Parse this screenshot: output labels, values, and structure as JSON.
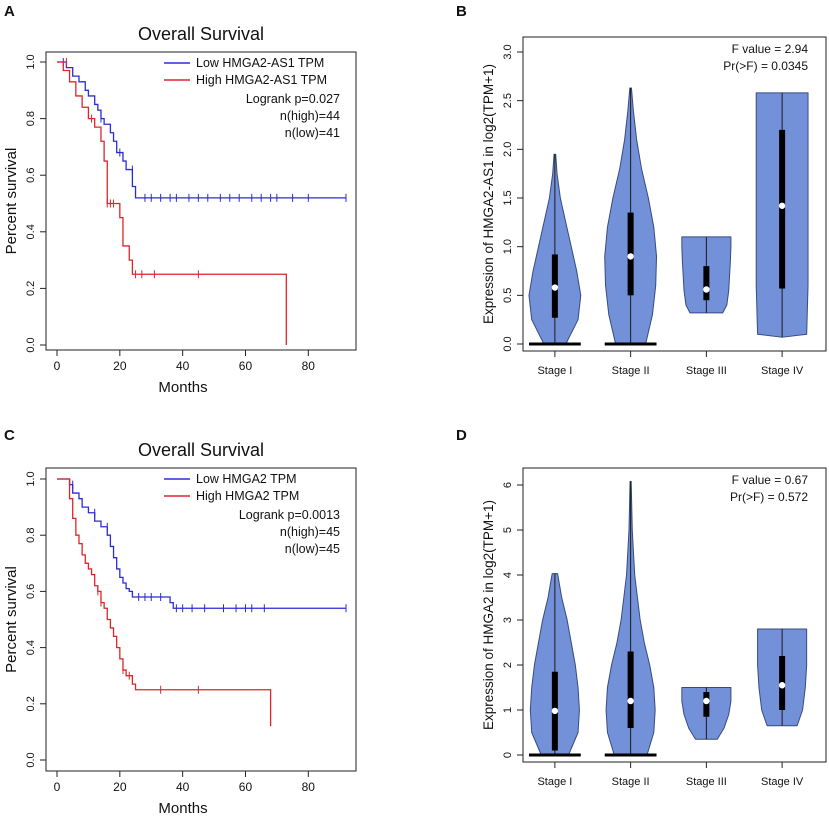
{
  "colors": {
    "low": "#2b2bd8",
    "high": "#e0242a",
    "violin_fill": "#7391d8",
    "violin_edge": "#384b80",
    "axis": "#222222",
    "text": "#111111"
  },
  "panels": {
    "A": {
      "letter": "A"
    },
    "B": {
      "letter": "B"
    },
    "C": {
      "letter": "C"
    },
    "D": {
      "letter": "D"
    }
  },
  "chart_data": [
    {
      "panel": "A",
      "type": "line",
      "subtype": "kaplan-meier",
      "title": "Overall Survival",
      "xlabel": "Months",
      "ylabel": "Percent survival",
      "xlim": [
        0,
        92
      ],
      "ylim": [
        0,
        1.0
      ],
      "xticks": [
        0,
        20,
        40,
        60,
        80
      ],
      "yticks": [
        0.0,
        0.2,
        0.4,
        0.6,
        0.8,
        1.0
      ],
      "legend": {
        "position": "top-right",
        "entries": [
          "Low HMGA2-AS1 TPM",
          "High HMGA2-AS1 TPM"
        ],
        "stats": [
          "Logrank p=0.027",
          "n(high)=44",
          "n(low)=41"
        ]
      },
      "series": [
        {
          "name": "Low HMGA2-AS1 TPM",
          "color_key": "low",
          "steps": [
            [
              0,
              1.0
            ],
            [
              3,
              0.98
            ],
            [
              5,
              0.95
            ],
            [
              7,
              0.93
            ],
            [
              9,
              0.9
            ],
            [
              10,
              0.88
            ],
            [
              12,
              0.85
            ],
            [
              13,
              0.83
            ],
            [
              14,
              0.8
            ],
            [
              15,
              0.78
            ],
            [
              17,
              0.75
            ],
            [
              18,
              0.72
            ],
            [
              19,
              0.68
            ],
            [
              21,
              0.65
            ],
            [
              22,
              0.62
            ],
            [
              24,
              0.56
            ],
            [
              25,
              0.52
            ],
            [
              92,
              0.52
            ]
          ],
          "censor": [
            [
              2,
              1.0
            ],
            [
              14,
              0.8
            ],
            [
              20,
              0.68
            ],
            [
              24,
              0.62
            ],
            [
              28,
              0.52
            ],
            [
              30,
              0.52
            ],
            [
              33,
              0.52
            ],
            [
              36,
              0.52
            ],
            [
              38,
              0.52
            ],
            [
              42,
              0.52
            ],
            [
              45,
              0.52
            ],
            [
              48,
              0.52
            ],
            [
              52,
              0.52
            ],
            [
              55,
              0.52
            ],
            [
              58,
              0.52
            ],
            [
              62,
              0.52
            ],
            [
              65,
              0.52
            ],
            [
              68,
              0.52
            ],
            [
              70,
              0.52
            ],
            [
              75,
              0.52
            ],
            [
              80,
              0.52
            ],
            [
              92,
              0.52
            ]
          ]
        },
        {
          "name": "High HMGA2-AS1 TPM",
          "color_key": "high",
          "steps": [
            [
              0,
              1.0
            ],
            [
              2,
              0.97
            ],
            [
              4,
              0.93
            ],
            [
              6,
              0.88
            ],
            [
              8,
              0.84
            ],
            [
              10,
              0.8
            ],
            [
              12,
              0.77
            ],
            [
              14,
              0.72
            ],
            [
              15,
              0.65
            ],
            [
              16,
              0.5
            ],
            [
              20,
              0.45
            ],
            [
              21,
              0.35
            ],
            [
              23,
              0.3
            ],
            [
              24,
              0.25
            ],
            [
              73,
              0.25
            ],
            [
              73,
              0
            ]
          ],
          "censor": [
            [
              3,
              1.0
            ],
            [
              11,
              0.8
            ],
            [
              16,
              0.5
            ],
            [
              17,
              0.5
            ],
            [
              18,
              0.5
            ],
            [
              25,
              0.25
            ],
            [
              27,
              0.25
            ],
            [
              31,
              0.25
            ],
            [
              45,
              0.25
            ]
          ]
        }
      ]
    },
    {
      "panel": "B",
      "type": "violin",
      "ylabel": "Expression of HMGA2-AS1 in  log2(TPM+1)",
      "categories": [
        "Stage I",
        "Stage II",
        "Stage III",
        "Stage IV"
      ],
      "ylim": [
        0,
        3.0
      ],
      "yticks": [
        0.0,
        0.5,
        1.0,
        1.5,
        2.0,
        2.5,
        3.0
      ],
      "stats": [
        "F value = 2.94",
        "Pr(>F) = 0.0345"
      ],
      "violins": [
        {
          "min": 0.0,
          "max": 1.95,
          "q1": 0.27,
          "median": 0.58,
          "q3": 0.92,
          "zero_bar": true,
          "profile": [
            [
              0.0,
              0.4
            ],
            [
              0.25,
              0.85
            ],
            [
              0.5,
              0.95
            ],
            [
              0.75,
              0.8
            ],
            [
              1.0,
              0.6
            ],
            [
              1.25,
              0.4
            ],
            [
              1.5,
              0.2
            ],
            [
              1.75,
              0.08
            ],
            [
              1.95,
              0.03
            ]
          ]
        },
        {
          "min": 0.0,
          "max": 2.63,
          "q1": 0.5,
          "median": 0.9,
          "q3": 1.35,
          "zero_bar": true,
          "profile": [
            [
              0.0,
              0.55
            ],
            [
              0.3,
              0.8
            ],
            [
              0.6,
              0.92
            ],
            [
              0.9,
              0.95
            ],
            [
              1.2,
              0.85
            ],
            [
              1.5,
              0.65
            ],
            [
              1.8,
              0.4
            ],
            [
              2.1,
              0.22
            ],
            [
              2.4,
              0.1
            ],
            [
              2.63,
              0.03
            ]
          ]
        },
        {
          "min": 0.32,
          "max": 1.1,
          "q1": 0.45,
          "median": 0.56,
          "q3": 0.8,
          "zero_bar": false,
          "profile": [
            [
              0.32,
              0.6
            ],
            [
              0.4,
              0.75
            ],
            [
              0.55,
              0.82
            ],
            [
              0.7,
              0.85
            ],
            [
              0.85,
              0.88
            ],
            [
              1.0,
              0.9
            ],
            [
              1.1,
              0.9
            ]
          ]
        },
        {
          "min": 0.07,
          "max": 2.58,
          "q1": 0.57,
          "median": 1.42,
          "q3": 2.2,
          "zero_bar": false,
          "profile": [
            [
              0.07,
              0.02
            ],
            [
              0.1,
              0.9
            ],
            [
              0.6,
              0.95
            ],
            [
              1.2,
              0.95
            ],
            [
              1.8,
              0.95
            ],
            [
              2.3,
              0.95
            ],
            [
              2.58,
              0.95
            ]
          ]
        }
      ]
    },
    {
      "panel": "C",
      "type": "line",
      "subtype": "kaplan-meier",
      "title": "Overall Survival",
      "xlabel": "Months",
      "ylabel": "Percent survival",
      "xlim": [
        0,
        92
      ],
      "ylim": [
        0,
        1.0
      ],
      "xticks": [
        0,
        20,
        40,
        60,
        80
      ],
      "yticks": [
        0.0,
        0.2,
        0.4,
        0.6,
        0.8,
        1.0
      ],
      "legend": {
        "position": "top-right",
        "entries": [
          "Low HMGA2 TPM",
          "High HMGA2 TPM"
        ],
        "stats": [
          "Logrank p=0.0013",
          "n(high)=45",
          "n(low)=45"
        ]
      },
      "series": [
        {
          "name": "Low HMGA2 TPM",
          "color_key": "low",
          "steps": [
            [
              0,
              1.0
            ],
            [
              4,
              0.98
            ],
            [
              5,
              0.95
            ],
            [
              7,
              0.93
            ],
            [
              8,
              0.9
            ],
            [
              10,
              0.88
            ],
            [
              12,
              0.85
            ],
            [
              14,
              0.83
            ],
            [
              16,
              0.8
            ],
            [
              17,
              0.76
            ],
            [
              18,
              0.72
            ],
            [
              19,
              0.68
            ],
            [
              20,
              0.65
            ],
            [
              21,
              0.63
            ],
            [
              22,
              0.61
            ],
            [
              23,
              0.6
            ],
            [
              24,
              0.58
            ],
            [
              35,
              0.58
            ],
            [
              36,
              0.56
            ],
            [
              37,
              0.54
            ],
            [
              92,
              0.54
            ]
          ],
          "censor": [
            [
              5,
              0.98
            ],
            [
              12,
              0.88
            ],
            [
              16,
              0.83
            ],
            [
              26,
              0.58
            ],
            [
              28,
              0.58
            ],
            [
              30,
              0.58
            ],
            [
              33,
              0.58
            ],
            [
              38,
              0.54
            ],
            [
              40,
              0.54
            ],
            [
              43,
              0.54
            ],
            [
              47,
              0.54
            ],
            [
              53,
              0.54
            ],
            [
              57,
              0.54
            ],
            [
              60,
              0.54
            ],
            [
              62,
              0.54
            ],
            [
              66,
              0.54
            ],
            [
              92,
              0.54
            ]
          ]
        },
        {
          "name": "High HMGA2 TPM",
          "color_key": "high",
          "steps": [
            [
              0,
              1.0
            ],
            [
              4,
              0.93
            ],
            [
              5,
              0.86
            ],
            [
              6,
              0.8
            ],
            [
              7,
              0.77
            ],
            [
              8,
              0.73
            ],
            [
              9,
              0.7
            ],
            [
              10,
              0.68
            ],
            [
              11,
              0.66
            ],
            [
              12,
              0.62
            ],
            [
              13,
              0.6
            ],
            [
              14,
              0.56
            ],
            [
              15,
              0.54
            ],
            [
              16,
              0.5
            ],
            [
              17,
              0.47
            ],
            [
              18,
              0.44
            ],
            [
              19,
              0.4
            ],
            [
              20,
              0.36
            ],
            [
              21,
              0.32
            ],
            [
              22,
              0.3
            ],
            [
              24,
              0.27
            ],
            [
              25,
              0.25
            ],
            [
              68,
              0.25
            ],
            [
              68,
              0.12
            ]
          ],
          "censor": [
            [
              13,
              0.6
            ],
            [
              14,
              0.56
            ],
            [
              21,
              0.32
            ],
            [
              23,
              0.3
            ],
            [
              33,
              0.25
            ],
            [
              45,
              0.25
            ]
          ]
        }
      ]
    },
    {
      "panel": "D",
      "type": "violin",
      "ylabel": "Expression of HMGA2 in  log2(TPM+1)",
      "categories": [
        "Stage I",
        "Stage II",
        "Stage III",
        "Stage IV"
      ],
      "ylim": [
        0,
        6.2
      ],
      "yticks": [
        0,
        1,
        2,
        3,
        4,
        5,
        6
      ],
      "stats": [
        "F value = 0.67",
        "Pr(>F) = 0.572"
      ],
      "violins": [
        {
          "min": 0.0,
          "max": 4.03,
          "q1": 0.1,
          "median": 0.98,
          "q3": 1.85,
          "zero_bar": true,
          "profile": [
            [
              0.0,
              0.5
            ],
            [
              0.5,
              0.85
            ],
            [
              1.0,
              0.9
            ],
            [
              1.5,
              0.85
            ],
            [
              2.0,
              0.75
            ],
            [
              2.5,
              0.6
            ],
            [
              3.0,
              0.45
            ],
            [
              3.5,
              0.25
            ],
            [
              4.03,
              0.1
            ]
          ]
        },
        {
          "min": 0.0,
          "max": 6.08,
          "q1": 0.6,
          "median": 1.2,
          "q3": 2.3,
          "zero_bar": true,
          "profile": [
            [
              0.0,
              0.6
            ],
            [
              0.5,
              0.85
            ],
            [
              1.0,
              0.9
            ],
            [
              1.5,
              0.85
            ],
            [
              2.0,
              0.7
            ],
            [
              2.5,
              0.5
            ],
            [
              3.0,
              0.35
            ],
            [
              4.0,
              0.15
            ],
            [
              5.0,
              0.06
            ],
            [
              6.08,
              0.02
            ]
          ]
        },
        {
          "min": 0.35,
          "max": 1.5,
          "q1": 0.85,
          "median": 1.2,
          "q3": 1.4,
          "zero_bar": false,
          "profile": [
            [
              0.35,
              0.4
            ],
            [
              0.6,
              0.65
            ],
            [
              0.9,
              0.82
            ],
            [
              1.2,
              0.9
            ],
            [
              1.5,
              0.9
            ]
          ]
        },
        {
          "min": 0.65,
          "max": 2.8,
          "q1": 1.0,
          "median": 1.55,
          "q3": 2.2,
          "zero_bar": false,
          "profile": [
            [
              0.65,
              0.55
            ],
            [
              1.0,
              0.75
            ],
            [
              1.5,
              0.85
            ],
            [
              2.0,
              0.9
            ],
            [
              2.5,
              0.9
            ],
            [
              2.8,
              0.9
            ]
          ]
        }
      ]
    }
  ]
}
